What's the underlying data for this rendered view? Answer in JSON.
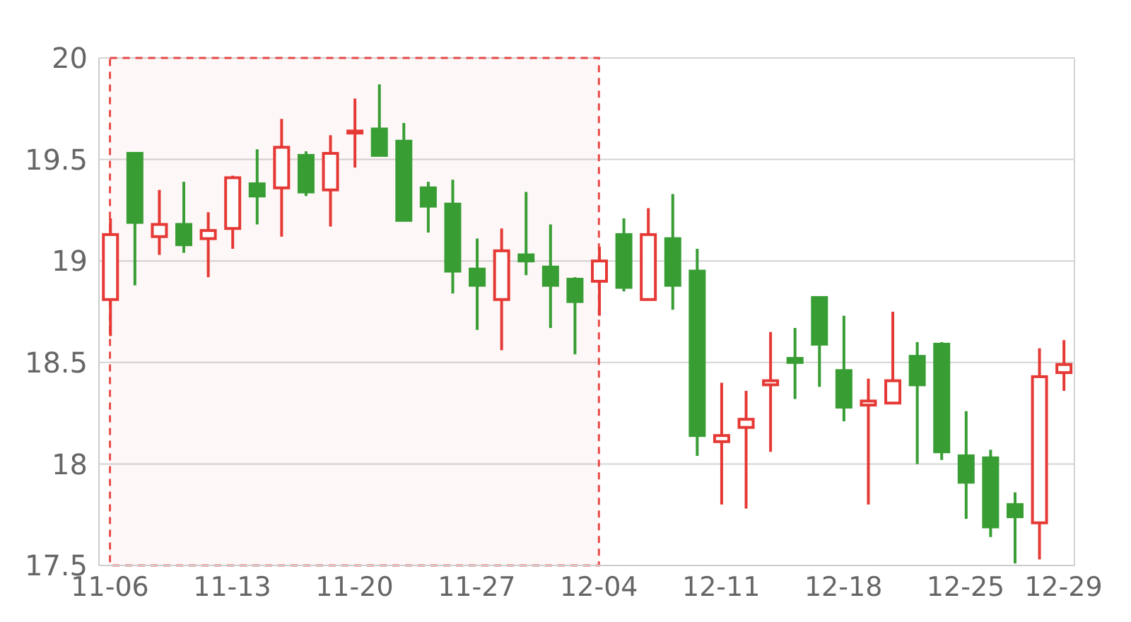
{
  "chart_data": {
    "type": "candlestick",
    "categories": [
      "11-06",
      null,
      null,
      null,
      null,
      "11-13",
      null,
      null,
      null,
      null,
      "11-20",
      null,
      null,
      null,
      null,
      "11-27",
      null,
      null,
      null,
      null,
      "12-04",
      null,
      null,
      null,
      null,
      "12-11",
      null,
      null,
      null,
      null,
      "12-18",
      null,
      null,
      null,
      null,
      "12-25",
      null,
      null,
      null,
      "12-29"
    ],
    "ohlc": [
      [
        18.81,
        19.21,
        18.63,
        19.13
      ],
      [
        19.53,
        19.53,
        18.88,
        19.19
      ],
      [
        19.12,
        19.35,
        19.03,
        19.18
      ],
      [
        19.18,
        19.39,
        19.04,
        19.08
      ],
      [
        19.11,
        19.24,
        18.92,
        19.15
      ],
      [
        19.16,
        19.42,
        19.06,
        19.41
      ],
      [
        19.38,
        19.55,
        19.18,
        19.32
      ],
      [
        19.36,
        19.7,
        19.12,
        19.56
      ],
      [
        19.52,
        19.54,
        19.32,
        19.34
      ],
      [
        19.35,
        19.62,
        19.17,
        19.53
      ],
      [
        19.63,
        19.8,
        19.46,
        19.64
      ],
      [
        19.65,
        19.87,
        19.52,
        19.52
      ],
      [
        19.59,
        19.68,
        19.2,
        19.2
      ],
      [
        19.36,
        19.39,
        19.14,
        19.27
      ],
      [
        19.28,
        19.4,
        18.84,
        18.95
      ],
      [
        18.96,
        19.11,
        18.66,
        18.88
      ],
      [
        18.81,
        19.16,
        18.56,
        19.05
      ],
      [
        19.03,
        19.34,
        18.93,
        19
      ],
      [
        18.97,
        19.18,
        18.67,
        18.88
      ],
      [
        18.91,
        18.92,
        18.54,
        18.8
      ],
      [
        18.9,
        19.07,
        18.73,
        19
      ],
      [
        19.13,
        19.21,
        18.85,
        18.87
      ],
      [
        18.81,
        19.26,
        18.81,
        19.13
      ],
      [
        19.11,
        19.33,
        18.76,
        18.88
      ],
      [
        18.95,
        19.06,
        18.04,
        18.14
      ],
      [
        18.11,
        18.4,
        17.8,
        18.14
      ],
      [
        18.18,
        18.36,
        17.78,
        18.22
      ],
      [
        18.39,
        18.65,
        18.06,
        18.41
      ],
      [
        18.52,
        18.67,
        18.32,
        18.5
      ],
      [
        18.82,
        18.82,
        18.38,
        18.59
      ],
      [
        18.46,
        18.73,
        18.21,
        18.28
      ],
      [
        18.29,
        18.42,
        17.8,
        18.31
      ],
      [
        18.3,
        18.75,
        18.3,
        18.41
      ],
      [
        18.53,
        18.6,
        18,
        18.39
      ],
      [
        18.59,
        18.6,
        18.02,
        18.06
      ],
      [
        18.04,
        18.26,
        17.73,
        17.91
      ],
      [
        18.03,
        18.07,
        17.64,
        17.69
      ],
      [
        17.8,
        17.86,
        17.51,
        17.74
      ],
      [
        17.71,
        18.57,
        17.53,
        18.43
      ],
      [
        18.45,
        18.61,
        18.36,
        18.49
      ]
    ],
    "colors": [
      "#e53935",
      "#389e34",
      "#e53935",
      "#389e34",
      "#e53935",
      "#e53935",
      "#389e34",
      "#e53935",
      "#389e34",
      "#e53935",
      "#e53935",
      "#389e34",
      "#389e34",
      "#389e34",
      "#389e34",
      "#389e34",
      "#e53935",
      "#389e34",
      "#389e34",
      "#389e34",
      "#e53935",
      "#389e34",
      "#e53935",
      "#389e34",
      "#389e34",
      "#e53935",
      "#e53935",
      "#e53935",
      "#389e34",
      "#389e34",
      "#389e34",
      "#e53935",
      "#e53935",
      "#389e34",
      "#389e34",
      "#389e34",
      "#389e34",
      "#389e34",
      "#e53935",
      "#e53935"
    ],
    "ylim": [
      17.5,
      20
    ],
    "yticks": [
      17.5,
      18,
      18.5,
      19,
      19.5,
      20
    ],
    "grid": "y",
    "bands": [
      {
        "axis": "x",
        "from": "11-06",
        "to": "12-04",
        "color": "#e53935"
      }
    ]
  }
}
